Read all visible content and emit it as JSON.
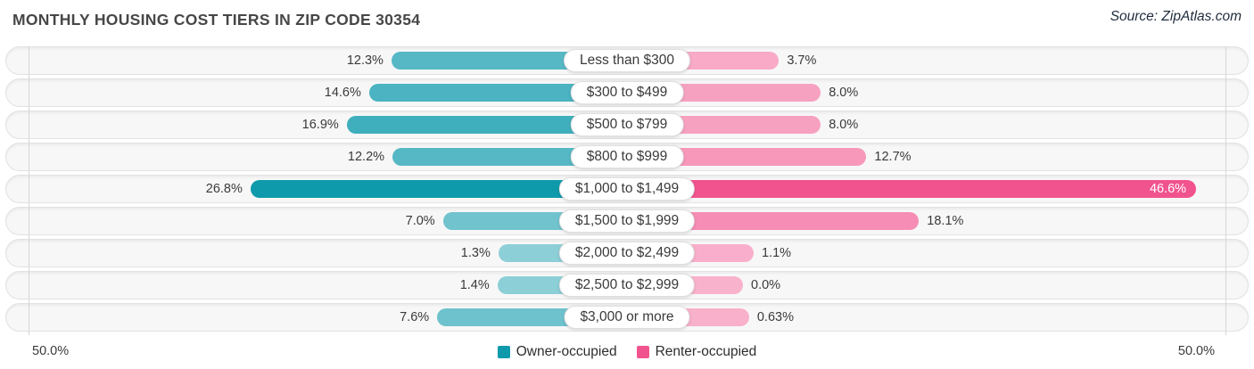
{
  "header": {
    "title": "MONTHLY HOUSING COST TIERS IN ZIP CODE 30354",
    "source": "Source: ZipAtlas.com"
  },
  "axis": {
    "left_label": "50.0%",
    "right_label": "50.0%"
  },
  "legend": {
    "owner_label": "Owner-occupied",
    "renter_label": "Renter-occupied"
  },
  "colors": {
    "owner_base": "#0f9aac",
    "renter_base": "#f1538e",
    "row_bg": "#f7f7f7",
    "row_border": "#e2e2e2",
    "gridline": "#d6d6d6"
  },
  "chart_data": {
    "type": "bar",
    "orientation": "diverging-horizontal",
    "title": "Monthly Housing Cost Tiers in Zip Code 30354",
    "categories": [
      "Less than $300",
      "$300 to $499",
      "$500 to $799",
      "$800 to $999",
      "$1,000 to $1,499",
      "$1,500 to $1,999",
      "$2,000 to $2,499",
      "$2,500 to $2,999",
      "$3,000 or more"
    ],
    "series": [
      {
        "name": "Owner-occupied",
        "side": "left",
        "values": [
          12.3,
          14.6,
          16.9,
          12.2,
          26.8,
          7.0,
          1.3,
          1.4,
          7.6
        ],
        "labels": [
          "12.3%",
          "14.6%",
          "16.9%",
          "12.2%",
          "26.8%",
          "7.0%",
          "1.3%",
          "1.4%",
          "7.6%"
        ]
      },
      {
        "name": "Renter-occupied",
        "side": "right",
        "values": [
          3.7,
          8.0,
          8.0,
          12.7,
          46.6,
          18.1,
          1.1,
          0.0,
          0.63
        ],
        "labels": [
          "3.7%",
          "8.0%",
          "8.0%",
          "12.7%",
          "46.6%",
          "18.1%",
          "1.1%",
          "0.0%",
          "0.63%"
        ]
      }
    ],
    "xlim": [
      -50,
      50
    ],
    "axis_tick_labels": [
      "50.0%",
      "50.0%"
    ],
    "legend_position": "bottom-center",
    "grid": "edge-gridlines-only"
  }
}
